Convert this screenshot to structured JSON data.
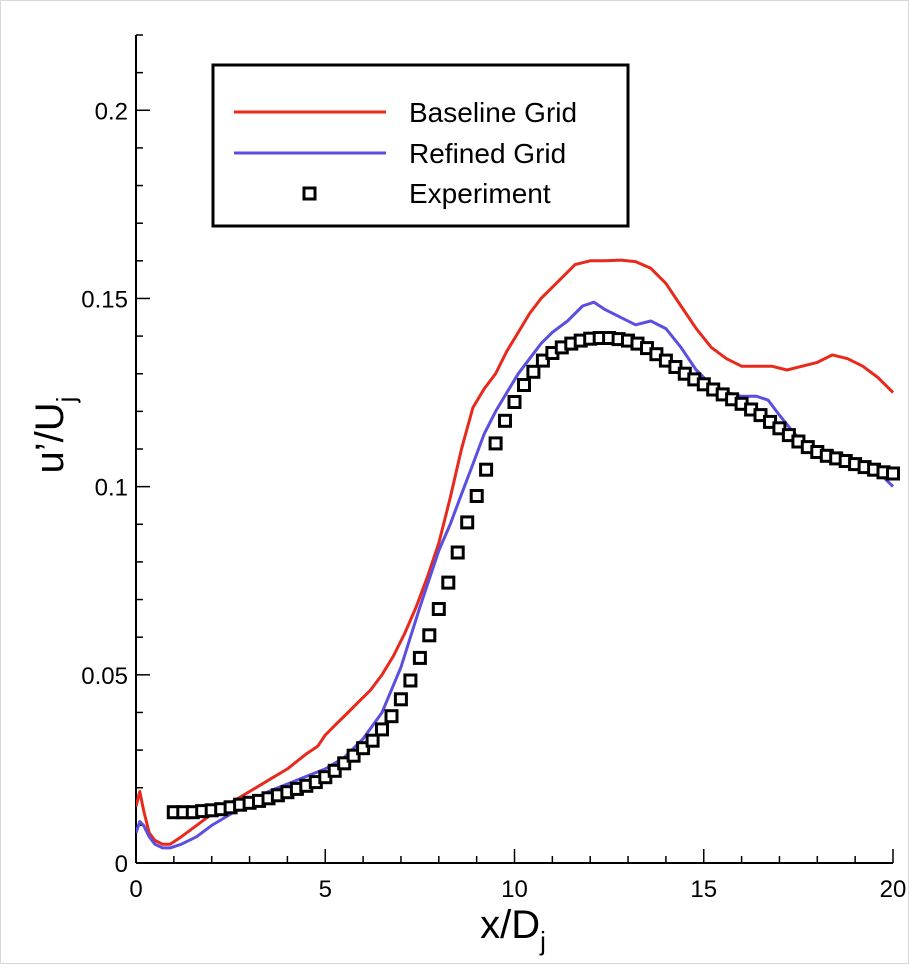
{
  "chart_data": {
    "type": "line",
    "title": "",
    "xlabel": {
      "main": "x/D",
      "sub": "j"
    },
    "ylabel": {
      "main": "u’/U",
      "sub": "j"
    },
    "xlim": [
      0,
      20
    ],
    "ylim": [
      0,
      0.22
    ],
    "x_ticks": [
      0,
      5,
      10,
      15,
      20
    ],
    "x_tick_labels": [
      "0",
      "5",
      "10",
      "15",
      "20"
    ],
    "y_ticks": [
      0,
      0.05,
      0.1,
      0.15,
      0.2
    ],
    "y_tick_labels": [
      "0",
      "0.05",
      "0.1",
      "0.15",
      "0.2"
    ],
    "grid": false,
    "legend_position": "top-left",
    "series": [
      {
        "name": "Baseline Grid",
        "style": "line",
        "color": "#e8291c",
        "x": [
          0,
          0.1,
          0.2,
          0.35,
          0.5,
          0.7,
          0.9,
          1.2,
          1.6,
          2.0,
          2.5,
          3.0,
          3.5,
          4.0,
          4.5,
          4.8,
          5.0,
          5.3,
          5.6,
          5.9,
          6.2,
          6.5,
          6.8,
          7.1,
          7.4,
          7.7,
          8.0,
          8.3,
          8.6,
          8.9,
          9.2,
          9.5,
          9.8,
          10.1,
          10.4,
          10.7,
          11.0,
          11.3,
          11.6,
          12.0,
          12.4,
          12.8,
          13.2,
          13.6,
          14.0,
          14.4,
          14.8,
          15.2,
          15.6,
          16.0,
          16.4,
          16.8,
          17.2,
          17.6,
          18.0,
          18.4,
          18.8,
          19.2,
          19.6,
          20.0
        ],
        "values": [
          0.015,
          0.019,
          0.014,
          0.008,
          0.006,
          0.005,
          0.005,
          0.007,
          0.01,
          0.013,
          0.016,
          0.019,
          0.022,
          0.025,
          0.029,
          0.031,
          0.034,
          0.037,
          0.04,
          0.043,
          0.046,
          0.05,
          0.055,
          0.061,
          0.068,
          0.076,
          0.085,
          0.097,
          0.11,
          0.121,
          0.126,
          0.13,
          0.136,
          0.141,
          0.146,
          0.15,
          0.153,
          0.156,
          0.159,
          0.16,
          0.16,
          0.1602,
          0.1598,
          0.158,
          0.154,
          0.148,
          0.142,
          0.137,
          0.134,
          0.132,
          0.132,
          0.132,
          0.131,
          0.132,
          0.133,
          0.135,
          0.134,
          0.132,
          0.129,
          0.125
        ]
      },
      {
        "name": "Refined Grid",
        "style": "line",
        "color": "#5a4fe0",
        "x": [
          0,
          0.1,
          0.2,
          0.35,
          0.5,
          0.7,
          0.9,
          1.2,
          1.6,
          2.0,
          2.5,
          3.0,
          3.5,
          4.0,
          4.5,
          5.0,
          5.5,
          6.0,
          6.5,
          7.0,
          7.5,
          8.0,
          8.3,
          8.6,
          8.9,
          9.2,
          9.5,
          9.8,
          10.1,
          10.4,
          10.7,
          11.0,
          11.4,
          11.8,
          12.1,
          12.4,
          12.8,
          13.2,
          13.6,
          14.0,
          14.4,
          14.8,
          15.2,
          15.6,
          16.0,
          16.4,
          16.7,
          17.0,
          17.4,
          17.8,
          18.2,
          18.6,
          19.0,
          19.4,
          19.7,
          20.0
        ],
        "values": [
          0.008,
          0.011,
          0.01,
          0.007,
          0.005,
          0.004,
          0.004,
          0.005,
          0.007,
          0.01,
          0.013,
          0.016,
          0.019,
          0.021,
          0.023,
          0.025,
          0.028,
          0.033,
          0.04,
          0.052,
          0.068,
          0.083,
          0.09,
          0.098,
          0.106,
          0.114,
          0.12,
          0.125,
          0.13,
          0.134,
          0.138,
          0.141,
          0.144,
          0.148,
          0.149,
          0.147,
          0.145,
          0.143,
          0.144,
          0.142,
          0.137,
          0.131,
          0.127,
          0.125,
          0.124,
          0.124,
          0.123,
          0.119,
          0.114,
          0.111,
          0.109,
          0.107,
          0.106,
          0.105,
          0.103,
          0.1
        ]
      },
      {
        "name": "Experiment",
        "style": "markers",
        "marker": "square",
        "color": "#000000",
        "x": [
          1.0,
          1.25,
          1.5,
          1.75,
          2.0,
          2.25,
          2.5,
          2.75,
          3.0,
          3.25,
          3.5,
          3.75,
          4.0,
          4.25,
          4.5,
          4.75,
          5.0,
          5.25,
          5.5,
          5.75,
          6.0,
          6.25,
          6.5,
          6.75,
          7.0,
          7.25,
          7.5,
          7.75,
          8.0,
          8.25,
          8.5,
          8.75,
          9.0,
          9.25,
          9.5,
          9.75,
          10.0,
          10.25,
          10.5,
          10.75,
          11.0,
          11.25,
          11.5,
          11.75,
          12.0,
          12.25,
          12.5,
          12.75,
          13.0,
          13.25,
          13.5,
          13.75,
          14.0,
          14.25,
          14.5,
          14.75,
          15.0,
          15.25,
          15.5,
          15.75,
          16.0,
          16.25,
          16.5,
          16.75,
          17.0,
          17.25,
          17.5,
          17.75,
          18.0,
          18.25,
          18.5,
          18.75,
          19.0,
          19.25,
          19.5,
          19.75,
          20.0
        ],
        "values": [
          0.0135,
          0.0135,
          0.0135,
          0.0138,
          0.014,
          0.0143,
          0.0148,
          0.0155,
          0.016,
          0.0165,
          0.0172,
          0.018,
          0.0188,
          0.0197,
          0.0205,
          0.0215,
          0.0228,
          0.0245,
          0.0265,
          0.0285,
          0.0305,
          0.0325,
          0.0355,
          0.039,
          0.0435,
          0.0485,
          0.0545,
          0.0605,
          0.0675,
          0.0745,
          0.0825,
          0.0905,
          0.0975,
          0.1045,
          0.1115,
          0.1175,
          0.1225,
          0.127,
          0.1305,
          0.1335,
          0.1355,
          0.137,
          0.138,
          0.1388,
          0.1393,
          0.1395,
          0.1395,
          0.1392,
          0.1388,
          0.138,
          0.1368,
          0.1352,
          0.1335,
          0.1318,
          0.13,
          0.1285,
          0.1272,
          0.1258,
          0.1245,
          0.1232,
          0.122,
          0.1205,
          0.119,
          0.1172,
          0.1155,
          0.1137,
          0.112,
          0.1105,
          0.1092,
          0.1082,
          0.1075,
          0.1068,
          0.106,
          0.1052,
          0.1045,
          0.1038,
          0.1035
        ]
      }
    ]
  }
}
